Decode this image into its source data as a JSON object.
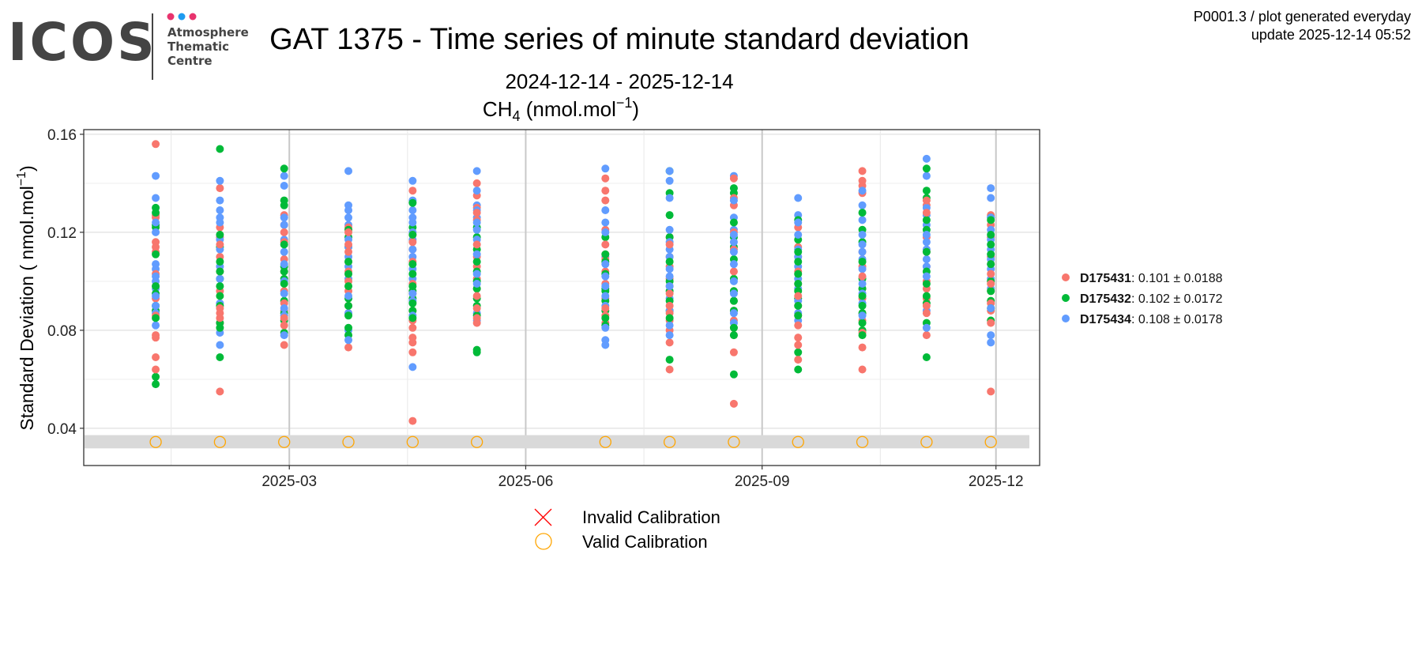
{
  "header": {
    "logo_main": "ICOS",
    "logo_sub": [
      "Atmosphere",
      "Thematic",
      "Centre"
    ],
    "logo_dot_colors": [
      "#e8336e",
      "#1e9bf0",
      "#e8336e"
    ],
    "plot_id": "P0001.3 / plot generated everyday",
    "update": "update  2025-12-14 05:52"
  },
  "chart_data": {
    "type": "scatter",
    "title": "GAT 1375 - Time series of minute standard deviation",
    "subtitle": "2024-12-14 - 2025-12-14",
    "panel_title": {
      "species": "CH",
      "sub": "4",
      "unit_pre": " (nmol.mol",
      "sup": "−1",
      "unit_post": ")"
    },
    "ylabel": {
      "pre": "Standard Deviation ( nmol.mol",
      "sup": "−1",
      "post": ")"
    },
    "xlabel": "",
    "xlim": [
      "2024-12-11",
      "2025-12-18"
    ],
    "ylim": [
      0.0248,
      0.1619
    ],
    "yticks": [
      0.04,
      0.08,
      0.12,
      0.16
    ],
    "ytick_labels": [
      "0.04",
      "0.08",
      "0.12",
      "0.16"
    ],
    "xticks": [
      "2025-03-01",
      "2025-06-01",
      "2025-09-01",
      "2025-12-01"
    ],
    "xtick_labels": [
      "2025-03",
      "2025-06",
      "2025-09",
      "2025-12"
    ],
    "grid": true,
    "calibration_band": [
      0.0318,
      0.0372
    ],
    "calibration_level": 0.0344,
    "dates": [
      "2025-01-08",
      "2025-02-02",
      "2025-02-27",
      "2025-03-24",
      "2025-04-18",
      "2025-05-13",
      "2025-07-02",
      "2025-07-27",
      "2025-08-21",
      "2025-09-15",
      "2025-10-10",
      "2025-11-04",
      "2025-11-29"
    ],
    "calibrations": [
      {
        "status": "valid"
      },
      {
        "status": "valid"
      },
      {
        "status": "valid"
      },
      {
        "status": "valid"
      },
      {
        "status": "valid"
      },
      {
        "status": "valid"
      },
      {
        "status": "valid"
      },
      {
        "status": "valid"
      },
      {
        "status": "valid"
      },
      {
        "status": "valid"
      },
      {
        "status": "valid"
      },
      {
        "status": "valid"
      },
      {
        "status": "valid"
      }
    ],
    "legend_position": "right",
    "series": [
      {
        "name": "D175431",
        "stat": ": 0.101 ± 0.0188",
        "color": "#F8766D",
        "values": [
          [
            0.156,
            0.127,
            0.126,
            0.116,
            0.114,
            0.112,
            0.103,
            0.098,
            0.093,
            0.088,
            0.086,
            0.078,
            0.077,
            0.069,
            0.064
          ],
          [
            0.138,
            0.122,
            0.118,
            0.115,
            0.11,
            0.104,
            0.096,
            0.089,
            0.087,
            0.085,
            0.083,
            0.055
          ],
          [
            0.127,
            0.123,
            0.12,
            0.116,
            0.109,
            0.104,
            0.096,
            0.091,
            0.088,
            0.085,
            0.082,
            0.074
          ],
          [
            0.122,
            0.12,
            0.115,
            0.112,
            0.108,
            0.104,
            0.1,
            0.096,
            0.09,
            0.087,
            0.073
          ],
          [
            0.137,
            0.119,
            0.116,
            0.113,
            0.108,
            0.099,
            0.095,
            0.088,
            0.084,
            0.081,
            0.077,
            0.075,
            0.071,
            0.043
          ],
          [
            0.14,
            0.135,
            0.13,
            0.128,
            0.125,
            0.115,
            0.11,
            0.106,
            0.101,
            0.097,
            0.094,
            0.089,
            0.085,
            0.083
          ],
          [
            0.142,
            0.137,
            0.133,
            0.121,
            0.115,
            0.111,
            0.109,
            0.104,
            0.099,
            0.093,
            0.089,
            0.086,
            0.083
          ],
          [
            0.118,
            0.115,
            0.11,
            0.106,
            0.101,
            0.098,
            0.095,
            0.09,
            0.087,
            0.084,
            0.08,
            0.075,
            0.064
          ],
          [
            0.142,
            0.134,
            0.131,
            0.12,
            0.113,
            0.104,
            0.096,
            0.092,
            0.088,
            0.084,
            0.081,
            0.078,
            0.071,
            0.05
          ],
          [
            0.122,
            0.114,
            0.11,
            0.104,
            0.099,
            0.094,
            0.09,
            0.086,
            0.082,
            0.077,
            0.074,
            0.068
          ],
          [
            0.145,
            0.141,
            0.139,
            0.136,
            0.112,
            0.106,
            0.102,
            0.097,
            0.093,
            0.087,
            0.084,
            0.079,
            0.073,
            0.064
          ],
          [
            0.133,
            0.131,
            0.128,
            0.118,
            0.112,
            0.106,
            0.1,
            0.097,
            0.093,
            0.09,
            0.087,
            0.078
          ],
          [
            0.127,
            0.123,
            0.118,
            0.11,
            0.107,
            0.103,
            0.099,
            0.096,
            0.091,
            0.088,
            0.083,
            0.055
          ]
        ]
      },
      {
        "name": "D175432",
        "stat": ": 0.102 ± 0.0172",
        "color": "#00BA38",
        "values": [
          [
            0.13,
            0.128,
            0.123,
            0.122,
            0.111,
            0.098,
            0.095,
            0.09,
            0.088,
            0.085,
            0.061,
            0.058
          ],
          [
            0.154,
            0.119,
            0.114,
            0.108,
            0.104,
            0.101,
            0.098,
            0.094,
            0.09,
            0.083,
            0.081,
            0.069
          ],
          [
            0.146,
            0.133,
            0.131,
            0.115,
            0.106,
            0.104,
            0.101,
            0.099,
            0.092,
            0.087,
            0.084,
            0.079
          ],
          [
            0.121,
            0.118,
            0.114,
            0.108,
            0.103,
            0.098,
            0.093,
            0.09,
            0.086,
            0.081,
            0.078
          ],
          [
            0.132,
            0.122,
            0.119,
            0.107,
            0.103,
            0.098,
            0.096,
            0.093,
            0.091,
            0.088,
            0.085
          ],
          [
            0.122,
            0.118,
            0.113,
            0.108,
            0.104,
            0.1,
            0.097,
            0.093,
            0.09,
            0.086,
            0.072,
            0.071
          ],
          [
            0.118,
            0.111,
            0.108,
            0.103,
            0.097,
            0.096,
            0.092,
            0.088,
            0.085,
            0.082
          ],
          [
            0.145,
            0.136,
            0.127,
            0.118,
            0.108,
            0.1,
            0.096,
            0.092,
            0.088,
            0.085,
            0.068
          ],
          [
            0.138,
            0.136,
            0.124,
            0.118,
            0.114,
            0.109,
            0.101,
            0.096,
            0.092,
            0.088,
            0.081,
            0.078,
            0.062
          ],
          [
            0.125,
            0.117,
            0.112,
            0.108,
            0.103,
            0.099,
            0.096,
            0.093,
            0.09,
            0.086,
            0.071,
            0.064
          ],
          [
            0.128,
            0.121,
            0.116,
            0.108,
            0.101,
            0.097,
            0.094,
            0.09,
            0.087,
            0.083,
            0.08,
            0.078
          ],
          [
            0.146,
            0.137,
            0.134,
            0.125,
            0.121,
            0.112,
            0.104,
            0.099,
            0.094,
            0.091,
            0.083,
            0.069
          ],
          [
            0.126,
            0.125,
            0.119,
            0.115,
            0.111,
            0.107,
            0.1,
            0.096,
            0.092,
            0.089,
            0.084
          ]
        ]
      },
      {
        "name": "D175434",
        "stat": ": 0.108 ± 0.0178",
        "color": "#619CFF",
        "values": [
          [
            0.143,
            0.134,
            0.124,
            0.12,
            0.107,
            0.105,
            0.102,
            0.1,
            0.097,
            0.094,
            0.09,
            0.087,
            0.082
          ],
          [
            0.141,
            0.133,
            0.129,
            0.126,
            0.124,
            0.117,
            0.113,
            0.106,
            0.101,
            0.091,
            0.079,
            0.074
          ],
          [
            0.143,
            0.139,
            0.126,
            0.123,
            0.117,
            0.112,
            0.107,
            0.1,
            0.095,
            0.089,
            0.086,
            0.078
          ],
          [
            0.145,
            0.131,
            0.129,
            0.126,
            0.123,
            0.117,
            0.114,
            0.11,
            0.106,
            0.101,
            0.094,
            0.087,
            0.08,
            0.076
          ],
          [
            0.141,
            0.133,
            0.129,
            0.126,
            0.124,
            0.12,
            0.117,
            0.113,
            0.11,
            0.105,
            0.101,
            0.095,
            0.092,
            0.086,
            0.065
          ],
          [
            0.145,
            0.137,
            0.131,
            0.129,
            0.126,
            0.124,
            0.121,
            0.117,
            0.111,
            0.103,
            0.099,
            0.087,
            0.084
          ],
          [
            0.146,
            0.129,
            0.124,
            0.12,
            0.11,
            0.107,
            0.102,
            0.098,
            0.094,
            0.09,
            0.081,
            0.076,
            0.074
          ],
          [
            0.145,
            0.141,
            0.134,
            0.121,
            0.116,
            0.113,
            0.11,
            0.105,
            0.102,
            0.098,
            0.093,
            0.088,
            0.082,
            0.078
          ],
          [
            0.143,
            0.133,
            0.126,
            0.121,
            0.119,
            0.116,
            0.112,
            0.107,
            0.1,
            0.095,
            0.087,
            0.083
          ],
          [
            0.134,
            0.127,
            0.124,
            0.119,
            0.113,
            0.11,
            0.106,
            0.101,
            0.097,
            0.092,
            0.087,
            0.084
          ],
          [
            0.137,
            0.131,
            0.125,
            0.119,
            0.115,
            0.112,
            0.109,
            0.105,
            0.099,
            0.095,
            0.091,
            0.086
          ],
          [
            0.15,
            0.143,
            0.13,
            0.127,
            0.123,
            0.119,
            0.116,
            0.113,
            0.109,
            0.106,
            0.102,
            0.088,
            0.081
          ],
          [
            0.138,
            0.134,
            0.126,
            0.121,
            0.117,
            0.113,
            0.109,
            0.105,
            0.101,
            0.097,
            0.089,
            0.078,
            0.075
          ]
        ]
      }
    ],
    "calibration_legend": [
      {
        "label": "Invalid Calibration",
        "color": "#FF0000",
        "symbol": "cross"
      },
      {
        "label": "Valid Calibration",
        "color": "#FFA500",
        "symbol": "circle"
      }
    ]
  }
}
